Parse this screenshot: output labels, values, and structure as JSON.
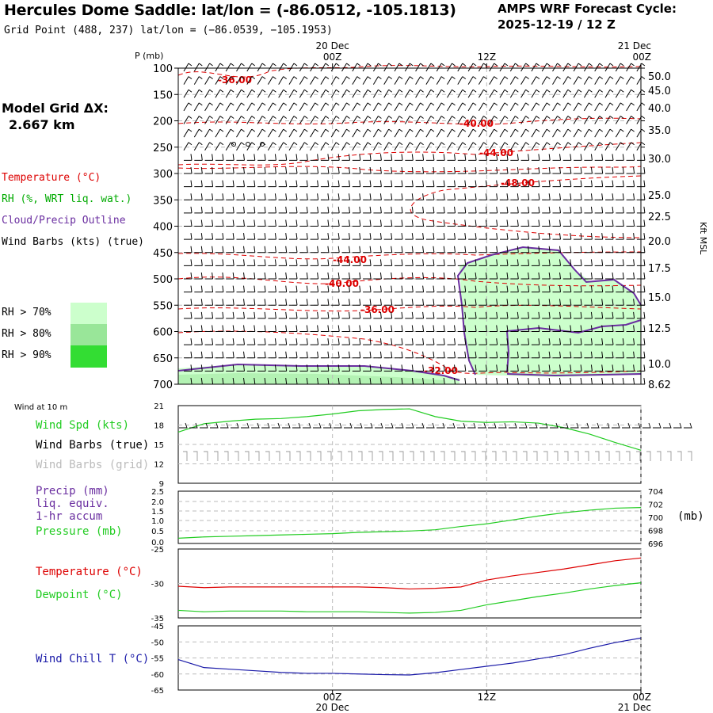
{
  "header": {
    "title": "Hercules Dome Saddle:  lat/lon = (-86.0512, -105.1813)",
    "grid_point": "Grid Point (488, 237) lat/lon = (−86.0539, −105.1953)",
    "cycle_line1": "AMPS WRF Forecast Cycle:",
    "cycle_line2": "2025-12-19 / 12  Z"
  },
  "model": {
    "label": "Model Grid ΔX:",
    "value": "2.667 km"
  },
  "legend": {
    "temperature": "Temperature (°C)",
    "rh": "RH (%, WRT liq. wat.)",
    "cloud": "Cloud/Precip Outline",
    "wind": "Wind Barbs (kts) (true)",
    "rh70": "RH > 70%",
    "rh80": "RH > 80%",
    "rh90": "RH > 90%",
    "colors": {
      "rh70": "#ccffcc",
      "rh80": "#99e699",
      "rh90": "#33dd33",
      "temperature": "#dd0000",
      "rh": "#00aa00",
      "cloud": "#6a2ea0"
    }
  },
  "time_axis": {
    "top_labels": [
      {
        "day": "20 Dec",
        "hour": "00Z"
      },
      {
        "day": "",
        "hour": "12Z"
      },
      {
        "day": "21 Dec",
        "hour": "00Z"
      }
    ],
    "bottom_labels": [
      {
        "hour": "00Z",
        "day": "20 Dec"
      },
      {
        "hour": "12Z",
        "day": ""
      },
      {
        "hour": "00Z",
        "day": "21 Dec"
      }
    ]
  },
  "panel_labels": {
    "wind10": "Wind at 10 m",
    "wind_spd": "Wind Spd (kts)",
    "barbs_true": "Wind Barbs (true)",
    "barbs_grid": "Wind Barbs (grid)",
    "precip": "Precip (mm)",
    "liq": "liq. equiv.",
    "accum": "1-hr accum",
    "pressure": "Pressure (mb)",
    "pressure_unit": "(mb)",
    "temp": "Temperature (°C)",
    "dew": "Dewpoint (°C)",
    "windchill": "Wind Chill T (°C)"
  },
  "chart_data": [
    {
      "type": "time-height cross section",
      "yaxis_label": "P (mb)",
      "right_axis_label": "Kft MSL",
      "pressure_ticks": [
        100,
        150,
        200,
        250,
        300,
        350,
        400,
        450,
        500,
        550,
        600,
        650,
        700
      ],
      "height_ticks": [
        "50.0",
        "45.0",
        "40.0",
        "35.0",
        "30.0",
        "25.0",
        "22.5",
        "20.0",
        "17.5",
        "15.0",
        "12.5",
        "10.0",
        "8.62"
      ],
      "temperature_contour_labels": [
        "-36.00",
        "-40.00",
        "-44.00",
        "-48.00",
        "-44.00",
        "-40.00",
        "-36.00",
        "-32.00"
      ],
      "xlim_hours": [
        -12,
        24
      ]
    },
    {
      "type": "line",
      "title": "Wind at 10 m",
      "ylabel": "Wind Spd (kts)",
      "yticks": [
        9,
        12,
        15,
        18,
        21
      ],
      "ylim": [
        9,
        21
      ],
      "x_hours": [
        -12,
        -10,
        -8,
        -6,
        -4,
        -2,
        0,
        2,
        4,
        6,
        8,
        10,
        12,
        14,
        16,
        18,
        20,
        22,
        24
      ],
      "series": [
        {
          "name": "Wind Spd (kts)",
          "color": "#22cc22",
          "values": [
            16.9,
            18.2,
            18.6,
            18.9,
            19.0,
            19.3,
            19.7,
            20.2,
            20.4,
            20.5,
            19.3,
            18.6,
            18.4,
            18.5,
            18.3,
            17.6,
            16.6,
            15.3,
            14.1
          ]
        }
      ]
    },
    {
      "type": "line",
      "ylabel": "Precip (mm)",
      "yticks_left": [
        "0.0",
        "0.5",
        "1.0",
        "1.5",
        "2.0",
        "2.5"
      ],
      "yticks_right": [
        "696",
        "698",
        "700",
        "702",
        "704"
      ],
      "ylim_right": [
        696,
        704
      ],
      "x_hours": [
        -12,
        -10,
        -8,
        -6,
        -4,
        -2,
        0,
        2,
        4,
        6,
        8,
        10,
        12,
        14,
        16,
        18,
        20,
        22,
        24
      ],
      "series": [
        {
          "name": "Pressure (mb)",
          "color": "#22cc22",
          "values": [
            696.8,
            697.0,
            697.1,
            697.2,
            697.3,
            697.4,
            697.5,
            697.7,
            697.8,
            697.9,
            698.1,
            698.6,
            699.0,
            699.6,
            700.2,
            700.7,
            701.1,
            701.4,
            701.5
          ]
        }
      ]
    },
    {
      "type": "line",
      "yticks": [
        -35,
        -30,
        -25
      ],
      "ylim": [
        -35,
        -25
      ],
      "x_hours": [
        -12,
        -10,
        -8,
        -6,
        -4,
        -2,
        0,
        2,
        4,
        6,
        8,
        10,
        12,
        14,
        16,
        18,
        20,
        22,
        24
      ],
      "series": [
        {
          "name": "Temperature (°C)",
          "color": "#dd0000",
          "values": [
            -30.4,
            -30.6,
            -30.5,
            -30.5,
            -30.5,
            -30.5,
            -30.5,
            -30.5,
            -30.6,
            -30.8,
            -30.7,
            -30.5,
            -29.5,
            -28.9,
            -28.4,
            -27.9,
            -27.3,
            -26.7,
            -26.3
          ]
        },
        {
          "name": "Dewpoint (°C)",
          "color": "#22cc22",
          "values": [
            -33.9,
            -34.1,
            -34.0,
            -34.0,
            -34.0,
            -34.1,
            -34.1,
            -34.1,
            -34.2,
            -34.3,
            -34.2,
            -33.9,
            -33.1,
            -32.5,
            -31.9,
            -31.4,
            -30.8,
            -30.3,
            -29.9
          ]
        }
      ]
    },
    {
      "type": "line",
      "yticks": [
        -65,
        -60,
        -55,
        -50,
        -45
      ],
      "ylim": [
        -65,
        -45
      ],
      "x_hours": [
        -12,
        -10,
        -8,
        -6,
        -4,
        -2,
        0,
        2,
        4,
        6,
        8,
        10,
        12,
        14,
        16,
        18,
        20,
        22,
        24
      ],
      "series": [
        {
          "name": "Wind Chill T (°C)",
          "color": "#1a1aa8",
          "values": [
            -55.5,
            -58.0,
            -58.5,
            -59.0,
            -59.5,
            -59.8,
            -59.8,
            -60.0,
            -60.2,
            -60.3,
            -59.6,
            -58.6,
            -57.6,
            -56.6,
            -55.3,
            -54.0,
            -52.0,
            -50.2,
            -48.8
          ]
        }
      ]
    }
  ]
}
